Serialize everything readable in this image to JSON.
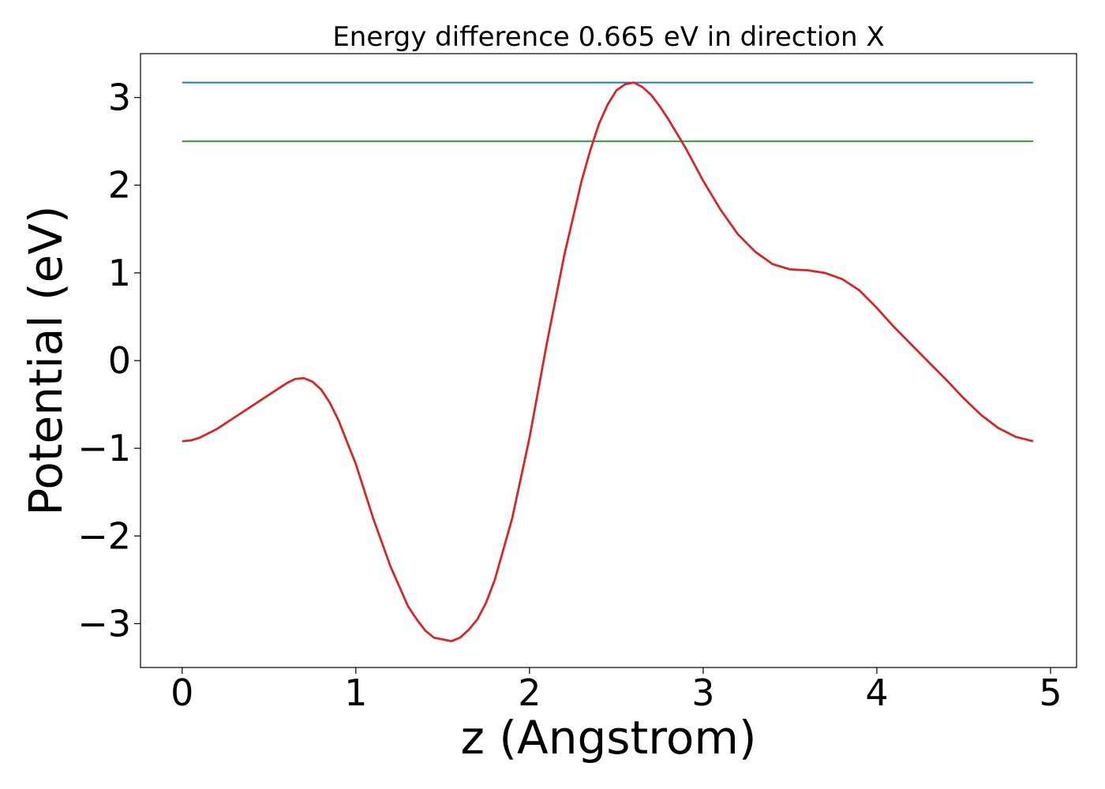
{
  "chart_data": {
    "type": "line",
    "title": "Energy difference 0.665 eV in direction X",
    "xlabel": "z (Angstrom)",
    "ylabel": "Potential (eV)",
    "xlim": [
      -0.24,
      5.15
    ],
    "ylim": [
      -3.5,
      3.5
    ],
    "xticks": [
      0,
      1,
      2,
      3,
      4,
      5
    ],
    "yticks": [
      -3,
      -2,
      -1,
      0,
      1,
      2,
      3
    ],
    "xtick_labels": [
      "0",
      "1",
      "2",
      "3",
      "4",
      "5"
    ],
    "ytick_labels": [
      "−3",
      "−2",
      "−1",
      "0",
      "1",
      "2",
      "3"
    ],
    "grid": false,
    "series": [
      {
        "color": "#1f77b4",
        "x": [
          0,
          4.9
        ],
        "y": [
          3.17,
          3.17
        ]
      },
      {
        "color": "#2ca02c",
        "x": [
          0,
          4.9
        ],
        "y": [
          2.5,
          2.5
        ]
      },
      {
        "color": "#d62728",
        "x": [
          0.0,
          0.05,
          0.1,
          0.2,
          0.3,
          0.4,
          0.5,
          0.6,
          0.65,
          0.7,
          0.75,
          0.8,
          0.85,
          0.9,
          1.0,
          1.1,
          1.2,
          1.3,
          1.35,
          1.4,
          1.45,
          1.5,
          1.55,
          1.6,
          1.65,
          1.7,
          1.75,
          1.8,
          1.9,
          2.0,
          2.1,
          2.2,
          2.3,
          2.35,
          2.4,
          2.45,
          2.5,
          2.55,
          2.6,
          2.65,
          2.7,
          2.75,
          2.8,
          2.9,
          3.0,
          3.1,
          3.2,
          3.3,
          3.4,
          3.5,
          3.6,
          3.7,
          3.8,
          3.9,
          4.0,
          4.1,
          4.2,
          4.3,
          4.4,
          4.5,
          4.6,
          4.7,
          4.8,
          4.9
        ],
        "y": [
          -0.92,
          -0.91,
          -0.88,
          -0.78,
          -0.65,
          -0.52,
          -0.39,
          -0.26,
          -0.21,
          -0.2,
          -0.24,
          -0.33,
          -0.48,
          -0.68,
          -1.18,
          -1.8,
          -2.35,
          -2.8,
          -2.95,
          -3.08,
          -3.16,
          -3.18,
          -3.2,
          -3.16,
          -3.07,
          -2.95,
          -2.76,
          -2.5,
          -1.8,
          -0.88,
          0.2,
          1.2,
          2.05,
          2.4,
          2.7,
          2.92,
          3.08,
          3.15,
          3.17,
          3.12,
          3.03,
          2.9,
          2.75,
          2.42,
          2.05,
          1.72,
          1.44,
          1.24,
          1.1,
          1.04,
          1.03,
          1.0,
          0.93,
          0.8,
          0.6,
          0.38,
          0.18,
          -0.02,
          -0.22,
          -0.43,
          -0.62,
          -0.77,
          -0.87,
          -0.92
        ]
      }
    ]
  }
}
